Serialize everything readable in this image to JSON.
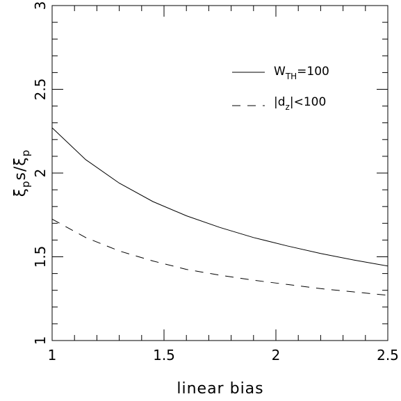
{
  "chart_data": {
    "type": "line",
    "xlabel": "linear bias",
    "ylabel": {
      "xi": "ξ",
      "p": "p",
      "s": "s",
      "slash": "/"
    },
    "xlim": [
      1,
      2.5
    ],
    "ylim": [
      1,
      3
    ],
    "xticks": [
      1,
      1.5,
      2,
      2.5
    ],
    "xtick_labels": [
      "1",
      "1.5",
      "2",
      "2.5"
    ],
    "yticks": [
      1,
      1.5,
      2,
      2.5,
      3
    ],
    "ytick_labels": [
      "1",
      "1.5",
      "2",
      "2.5",
      "3"
    ],
    "legend_placement": "top-right",
    "series": [
      {
        "legend": {
          "main": "W",
          "sub": "TH",
          "rest": "=100"
        },
        "style": "solid",
        "x": [
          1,
          1.15,
          1.3,
          1.45,
          1.6,
          1.75,
          1.9,
          2.05,
          2.2,
          2.35,
          2.5
        ],
        "y": [
          2.27,
          2.08,
          1.94,
          1.83,
          1.745,
          1.675,
          1.615,
          1.565,
          1.52,
          1.48,
          1.445
        ]
      },
      {
        "legend": {
          "main": "|d",
          "sub": "z",
          "rest": "|<100"
        },
        "style": "dashed",
        "x": [
          1,
          1.15,
          1.3,
          1.45,
          1.6,
          1.75,
          1.9,
          2.05,
          2.2,
          2.35,
          2.5
        ],
        "y": [
          1.725,
          1.615,
          1.535,
          1.475,
          1.425,
          1.39,
          1.36,
          1.335,
          1.31,
          1.29,
          1.27
        ]
      }
    ]
  }
}
